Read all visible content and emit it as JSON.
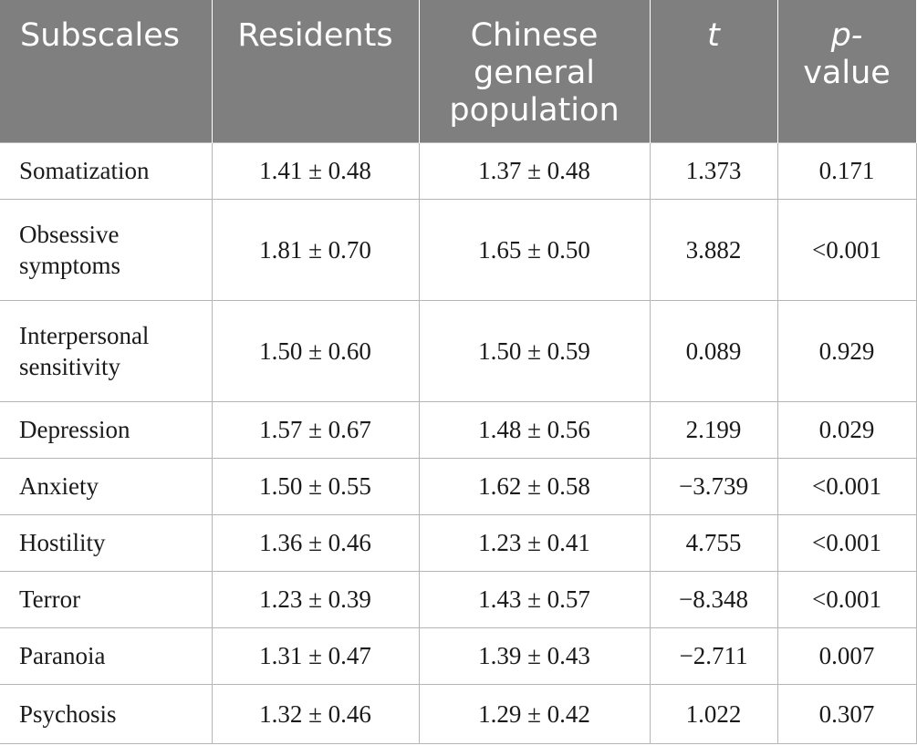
{
  "table": {
    "headers": [
      "Subscales",
      "Residents",
      "Chinese general population",
      "t",
      "p-value"
    ],
    "header_lines": {
      "col3": [
        "Chinese",
        "general",
        "population"
      ],
      "col5": [
        "p-",
        "value"
      ]
    },
    "rows": [
      {
        "label": "Somatization",
        "label_lines": [
          "Somatization"
        ],
        "residents": "1.41 ± 0.48",
        "general": "1.37 ± 0.48",
        "t": "1.373",
        "p": "0.171"
      },
      {
        "label": "Obsessive symptoms",
        "label_lines": [
          "Obsessive",
          "symptoms"
        ],
        "residents": "1.81 ± 0.70",
        "general": "1.65 ± 0.50",
        "t": "3.882",
        "p": "<0.001"
      },
      {
        "label": "Interpersonal sensitivity",
        "label_lines": [
          "Interpersonal",
          "sensitivity"
        ],
        "residents": "1.50 ± 0.60",
        "general": "1.50 ± 0.59",
        "t": "0.089",
        "p": "0.929"
      },
      {
        "label": "Depression",
        "label_lines": [
          "Depression"
        ],
        "residents": "1.57 ± 0.67",
        "general": "1.48 ± 0.56",
        "t": "2.199",
        "p": "0.029"
      },
      {
        "label": "Anxiety",
        "label_lines": [
          "Anxiety"
        ],
        "residents": "1.50 ± 0.55",
        "general": "1.62 ± 0.58",
        "t": "−3.739",
        "p": "<0.001"
      },
      {
        "label": "Hostility",
        "label_lines": [
          "Hostility"
        ],
        "residents": "1.36 ± 0.46",
        "general": "1.23 ± 0.41",
        "t": "4.755",
        "p": "<0.001"
      },
      {
        "label": "Terror",
        "label_lines": [
          "Terror"
        ],
        "residents": "1.23 ± 0.39",
        "general": "1.43 ± 0.57",
        "t": "−8.348",
        "p": "<0.001"
      },
      {
        "label": "Paranoia",
        "label_lines": [
          "Paranoia"
        ],
        "residents": "1.31 ± 0.47",
        "general": "1.39 ± 0.43",
        "t": "−2.711",
        "p": "0.007"
      },
      {
        "label": "Psychosis",
        "label_lines": [
          "Psychosis"
        ],
        "residents": "1.32 ± 0.46",
        "general": "1.29 ± 0.42",
        "t": "1.022",
        "p": "0.307"
      }
    ]
  },
  "colors": {
    "header_bg": "#7f7f7f",
    "header_text": "#ffffff",
    "grid": "#b5b5b5",
    "body_text": "#1a1a1a"
  }
}
